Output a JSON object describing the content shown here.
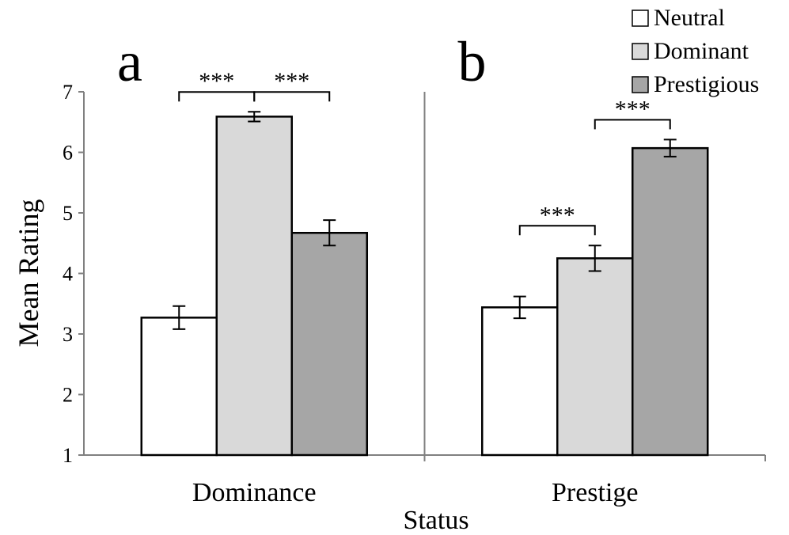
{
  "chart_data": {
    "type": "bar",
    "title": "",
    "xlabel": "Status",
    "ylabel": "Mean Rating",
    "ylim": [
      1,
      7
    ],
    "yticks": [
      1,
      2,
      3,
      4,
      5,
      6,
      7
    ],
    "grid": false,
    "legend_position": "top-right",
    "categories": [
      "Dominance",
      "Prestige"
    ],
    "panel_labels": [
      "a",
      "b"
    ],
    "series": [
      {
        "name": "Neutral",
        "color": "#ffffff",
        "values": [
          3.27,
          3.44
        ],
        "errors": [
          0.19,
          0.18
        ]
      },
      {
        "name": "Dominant",
        "color": "#d9d9d9",
        "values": [
          6.59,
          4.25
        ],
        "errors": [
          0.08,
          0.21
        ]
      },
      {
        "name": "Prestigious",
        "color": "#a6a6a6",
        "values": [
          4.67,
          6.07
        ],
        "errors": [
          0.21,
          0.14
        ]
      }
    ],
    "significance": [
      {
        "category": 0,
        "from_series": 0,
        "to_series": 1,
        "label": "***"
      },
      {
        "category": 0,
        "from_series": 1,
        "to_series": 2,
        "label": "***"
      },
      {
        "category": 1,
        "from_series": 0,
        "to_series": 1,
        "label": "***"
      },
      {
        "category": 1,
        "from_series": 1,
        "to_series": 2,
        "label": "***"
      }
    ]
  }
}
